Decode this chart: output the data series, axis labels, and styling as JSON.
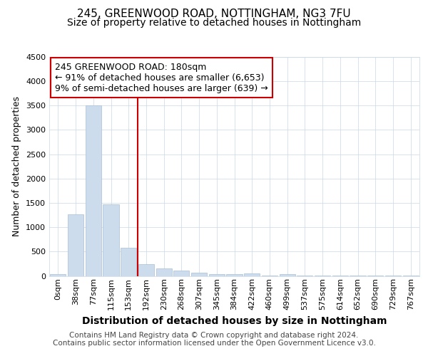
{
  "title1": "245, GREENWOOD ROAD, NOTTINGHAM, NG3 7FU",
  "title2": "Size of property relative to detached houses in Nottingham",
  "xlabel": "Distribution of detached houses by size in Nottingham",
  "ylabel": "Number of detached properties",
  "footer1": "Contains HM Land Registry data © Crown copyright and database right 2024.",
  "footer2": "Contains public sector information licensed under the Open Government Licence v3.0.",
  "bar_labels": [
    "0sqm",
    "38sqm",
    "77sqm",
    "115sqm",
    "153sqm",
    "192sqm",
    "230sqm",
    "268sqm",
    "307sqm",
    "345sqm",
    "384sqm",
    "422sqm",
    "460sqm",
    "499sqm",
    "537sqm",
    "575sqm",
    "614sqm",
    "652sqm",
    "690sqm",
    "729sqm",
    "767sqm"
  ],
  "bar_values": [
    30,
    1270,
    3500,
    1470,
    575,
    245,
    150,
    110,
    65,
    40,
    30,
    45,
    2,
    40,
    3,
    3,
    2,
    1,
    1,
    1,
    1
  ],
  "bar_color": "#ccdcec",
  "bar_edgecolor": "#a8c0d8",
  "vline_color": "#cc0000",
  "vline_bar_index": 5,
  "annotation_text": "245 GREENWOOD ROAD: 180sqm\n← 91% of detached houses are smaller (6,653)\n9% of semi-detached houses are larger (639) →",
  "annotation_box_edgecolor": "#cc0000",
  "annotation_box_facecolor": "#ffffff",
  "ylim": [
    0,
    4500
  ],
  "yticks": [
    0,
    500,
    1000,
    1500,
    2000,
    2500,
    3000,
    3500,
    4000,
    4500
  ],
  "bg_color": "#ffffff",
  "plot_bg_color": "#ffffff",
  "grid_color": "#c8d8e8",
  "title1_fontsize": 11,
  "title2_fontsize": 10,
  "xlabel_fontsize": 10,
  "ylabel_fontsize": 9,
  "tick_fontsize": 8,
  "annotation_fontsize": 9,
  "footer_fontsize": 7.5
}
